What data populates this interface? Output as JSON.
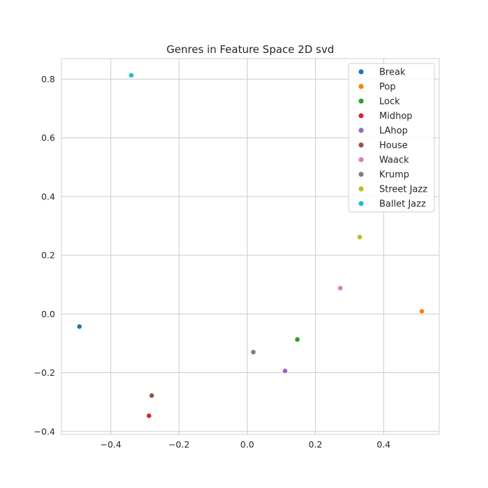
{
  "chart_data": {
    "type": "scatter",
    "title": "Genres in Feature Space 2D svd",
    "xlabel": "",
    "ylabel": "",
    "xlim": [
      -0.545,
      0.563
    ],
    "ylim": [
      -0.41,
      0.87
    ],
    "xticks": [
      -0.4,
      -0.2,
      0.0,
      0.2,
      0.4
    ],
    "yticks": [
      -0.4,
      -0.2,
      0.0,
      0.2,
      0.4,
      0.6,
      0.8
    ],
    "xtick_labels": [
      "−0.4",
      "−0.2",
      "0.0",
      "0.2",
      "0.4"
    ],
    "ytick_labels": [
      "−0.4",
      "−0.2",
      "0.0",
      "0.2",
      "0.4",
      "0.6",
      "0.8"
    ],
    "grid": true,
    "legend_position": "top-right",
    "series": [
      {
        "name": "Break",
        "color": "#1f77b4",
        "x": -0.492,
        "y": -0.043
      },
      {
        "name": "Pop",
        "color": "#ff7f0e",
        "x": 0.512,
        "y": 0.009
      },
      {
        "name": "Lock",
        "color": "#2ca02c",
        "x": 0.147,
        "y": -0.087
      },
      {
        "name": "Midhop",
        "color": "#d62728",
        "x": -0.288,
        "y": -0.347
      },
      {
        "name": "LAhop",
        "color": "#9467bd",
        "x": 0.111,
        "y": -0.194
      },
      {
        "name": "House",
        "color": "#8c564b",
        "x": -0.28,
        "y": -0.278
      },
      {
        "name": "Waack",
        "color": "#e377c2",
        "x": 0.273,
        "y": 0.088
      },
      {
        "name": "Krump",
        "color": "#7f7f7f",
        "x": 0.018,
        "y": -0.13
      },
      {
        "name": "Street Jazz",
        "color": "#bcbd22",
        "x": 0.33,
        "y": 0.262
      },
      {
        "name": "Ballet Jazz",
        "color": "#17becf",
        "x": -0.34,
        "y": 0.813
      }
    ]
  }
}
